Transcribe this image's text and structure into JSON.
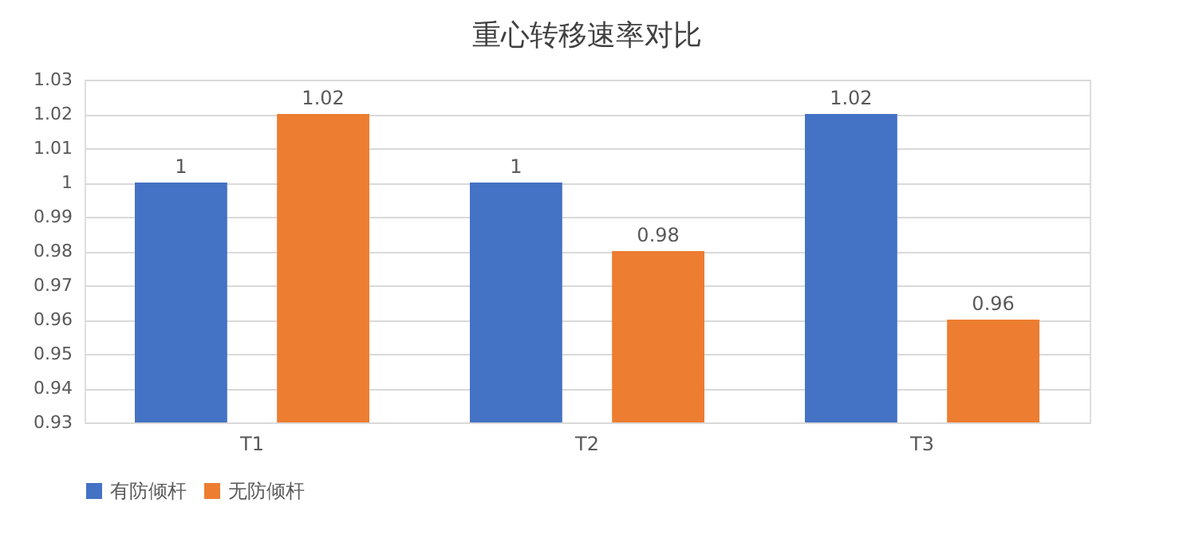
{
  "chart_data": {
    "type": "bar",
    "title": "重心转移速率对比",
    "categories": [
      "T1",
      "T2",
      "T3"
    ],
    "series": [
      {
        "name": "有防倾杆",
        "color": "#4472c4",
        "values": [
          1,
          1,
          1.02
        ]
      },
      {
        "name": "无防倾杆",
        "color": "#ed7d31",
        "values": [
          1.02,
          0.98,
          0.96
        ]
      }
    ],
    "ylim": [
      0.93,
      1.03
    ],
    "yticks": [
      0.93,
      0.94,
      0.95,
      0.96,
      0.97,
      0.98,
      0.99,
      1,
      1.01,
      1.02,
      1.03
    ],
    "grid": "y",
    "legend": "bottom",
    "data_labels": true
  }
}
